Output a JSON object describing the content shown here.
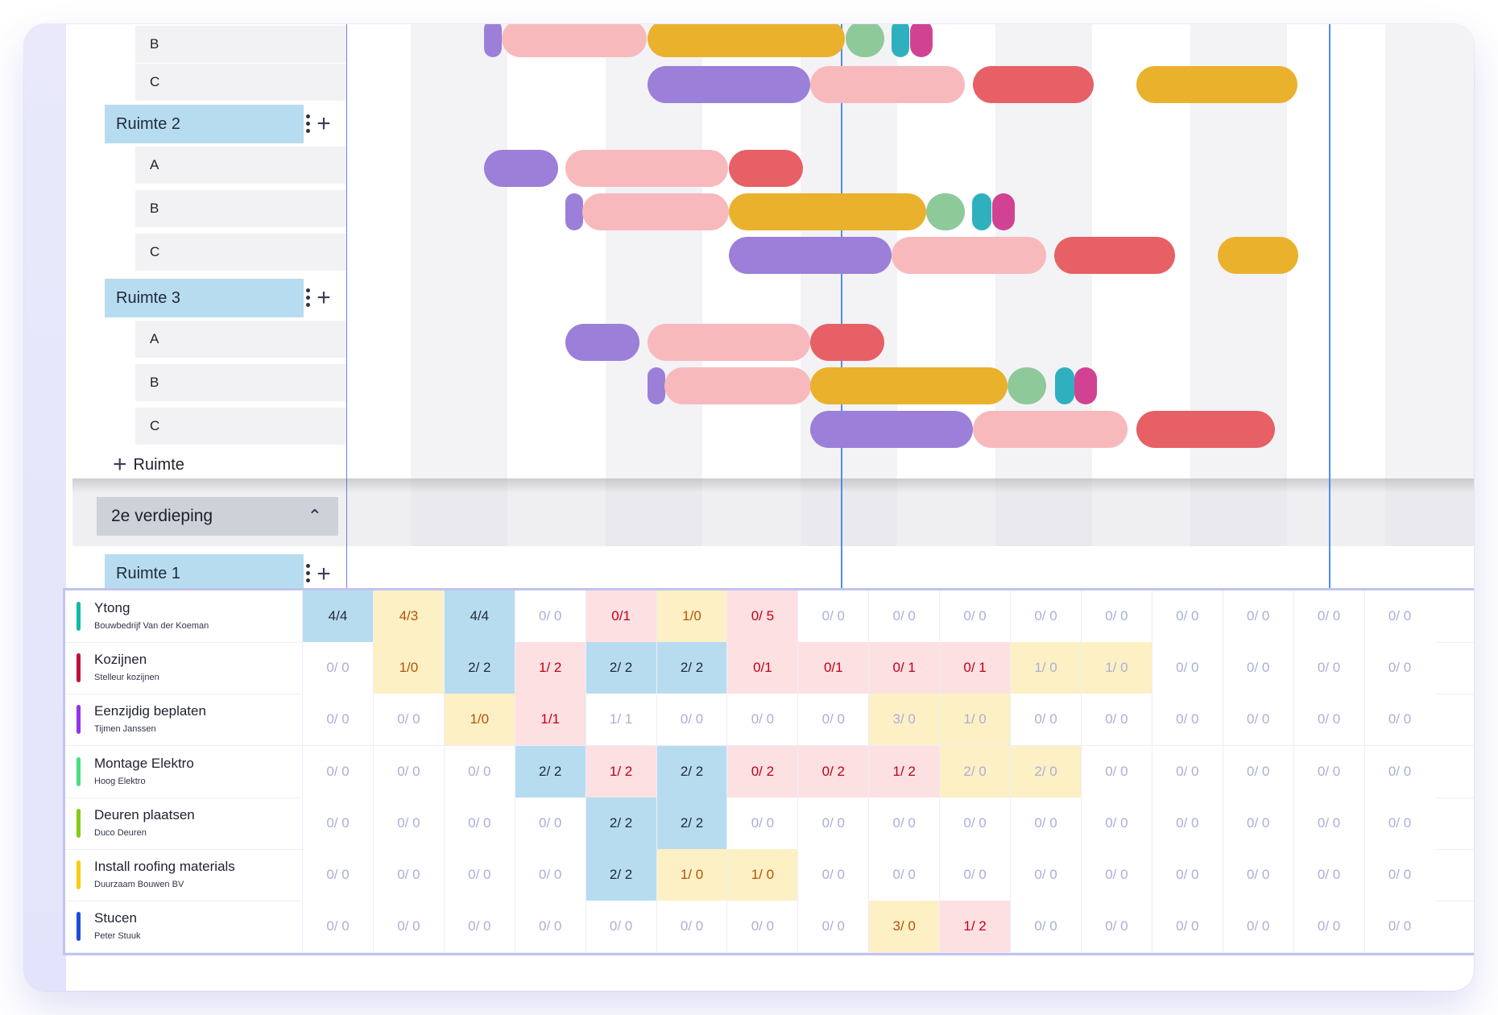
{
  "gantt": {
    "top_rows": [
      {
        "label": "B"
      },
      {
        "label": "C"
      }
    ],
    "rooms": [
      {
        "label": "Ruimte 2",
        "sub": [
          "A",
          "B",
          "C"
        ]
      },
      {
        "label": "Ruimte 3",
        "sub": [
          "A",
          "B",
          "C"
        ]
      }
    ],
    "add_room_label": "Ruimte",
    "floor_label": "2e verdieping",
    "floor_room_label": "Ruimte 1",
    "bar_colors": {
      "purple": "#9b7fd8",
      "pink": "#f8b9bd",
      "red": "#e66066",
      "yellow": "#eab12d",
      "green": "#8ec99a",
      "teal": "#2fb0bf",
      "magenta": "#d14392"
    }
  },
  "capacity": {
    "trades": [
      {
        "name": "Ytong",
        "company": "Bouwbedrijf Van der Koeman",
        "color": "#14b8a6",
        "cells": [
          [
            "4/4",
            "blue"
          ],
          [
            "4/3",
            "yellow"
          ],
          [
            "4/4",
            "blue"
          ],
          [
            "0/ 0",
            "empty"
          ],
          [
            "0/1",
            "red"
          ],
          [
            "1/0",
            "yellow"
          ],
          [
            "0/ 5",
            "red"
          ],
          [
            "0/ 0",
            "empty"
          ],
          [
            "0/ 0",
            "empty"
          ],
          [
            "0/ 0",
            "empty"
          ],
          [
            "0/ 0",
            "empty"
          ],
          [
            "0/ 0",
            "empty"
          ],
          [
            "0/ 0",
            "empty"
          ],
          [
            "0/ 0",
            "empty"
          ],
          [
            "0/ 0",
            "empty"
          ],
          [
            "0/ 0",
            "empty"
          ]
        ]
      },
      {
        "name": "Kozijnen",
        "company": "Stelleur kozijnen",
        "color": "#be123c",
        "cells": [
          [
            "0/ 0",
            "empty"
          ],
          [
            "1/0",
            "yellow"
          ],
          [
            "2/ 2",
            "blue"
          ],
          [
            "1/ 2",
            "red"
          ],
          [
            "2/ 2",
            "blue"
          ],
          [
            "2/ 2",
            "blue"
          ],
          [
            "0/1",
            "red"
          ],
          [
            "0/1",
            "red"
          ],
          [
            "0/ 1",
            "red"
          ],
          [
            "0/ 1",
            "red"
          ],
          [
            "1/ 0",
            "yellowpale"
          ],
          [
            "1/ 0",
            "yellowpale"
          ],
          [
            "0/ 0",
            "empty"
          ],
          [
            "0/ 0",
            "empty"
          ],
          [
            "0/ 0",
            "empty"
          ],
          [
            "0/ 0",
            "empty"
          ]
        ]
      },
      {
        "name": "Eenzijdig beplaten",
        "company": "Tijmen Janssen",
        "color": "#9333ea",
        "cells": [
          [
            "0/ 0",
            "empty"
          ],
          [
            "0/ 0",
            "empty"
          ],
          [
            "1/0",
            "yellow"
          ],
          [
            "1/1",
            "red"
          ],
          [
            "1/ 1",
            "empty"
          ],
          [
            "0/ 0",
            "empty"
          ],
          [
            "0/ 0",
            "empty"
          ],
          [
            "0/ 0",
            "empty"
          ],
          [
            "3/ 0",
            "yellowpale"
          ],
          [
            "1/ 0",
            "yellowpale"
          ],
          [
            "0/ 0",
            "empty"
          ],
          [
            "0/ 0",
            "empty"
          ],
          [
            "0/ 0",
            "empty"
          ],
          [
            "0/ 0",
            "empty"
          ],
          [
            "0/ 0",
            "empty"
          ],
          [
            "0/ 0",
            "empty"
          ]
        ]
      },
      {
        "name": "Montage Elektro",
        "company": "Hoog Elektro",
        "color": "#4ade80",
        "cells": [
          [
            "0/ 0",
            "empty"
          ],
          [
            "0/ 0",
            "empty"
          ],
          [
            "0/ 0",
            "empty"
          ],
          [
            "2/ 2",
            "blue"
          ],
          [
            "1/ 2",
            "red"
          ],
          [
            "2/ 2",
            "blue"
          ],
          [
            "0/ 2",
            "red"
          ],
          [
            "0/ 2",
            "red"
          ],
          [
            "1/ 2",
            "red"
          ],
          [
            "2/ 0",
            "yellowpale"
          ],
          [
            "2/ 0",
            "yellowpale"
          ],
          [
            "0/ 0",
            "empty"
          ],
          [
            "0/ 0",
            "empty"
          ],
          [
            "0/ 0",
            "empty"
          ],
          [
            "0/ 0",
            "empty"
          ],
          [
            "0/ 0",
            "empty"
          ]
        ]
      },
      {
        "name": "Deuren plaatsen",
        "company": "Duco Deuren",
        "color": "#84cc16",
        "cells": [
          [
            "0/ 0",
            "empty"
          ],
          [
            "0/ 0",
            "empty"
          ],
          [
            "0/ 0",
            "empty"
          ],
          [
            "0/ 0",
            "empty"
          ],
          [
            "2/ 2",
            "blue"
          ],
          [
            "2/ 2",
            "blue"
          ],
          [
            "0/ 0",
            "empty"
          ],
          [
            "0/ 0",
            "empty"
          ],
          [
            "0/ 0",
            "empty"
          ],
          [
            "0/ 0",
            "empty"
          ],
          [
            "0/ 0",
            "empty"
          ],
          [
            "0/ 0",
            "empty"
          ],
          [
            "0/ 0",
            "empty"
          ],
          [
            "0/ 0",
            "empty"
          ],
          [
            "0/ 0",
            "empty"
          ],
          [
            "0/ 0",
            "empty"
          ]
        ]
      },
      {
        "name": "Install roofing materials",
        "company": "Duurzaam Bouwen BV",
        "color": "#facc15",
        "cells": [
          [
            "0/ 0",
            "empty"
          ],
          [
            "0/ 0",
            "empty"
          ],
          [
            "0/ 0",
            "empty"
          ],
          [
            "0/ 0",
            "empty"
          ],
          [
            "2/ 2",
            "blue"
          ],
          [
            "1/ 0",
            "yellow"
          ],
          [
            "1/ 0",
            "yellow"
          ],
          [
            "0/ 0",
            "empty"
          ],
          [
            "0/ 0",
            "empty"
          ],
          [
            "0/ 0",
            "empty"
          ],
          [
            "0/ 0",
            "empty"
          ],
          [
            "0/ 0",
            "empty"
          ],
          [
            "0/ 0",
            "empty"
          ],
          [
            "0/ 0",
            "empty"
          ],
          [
            "0/ 0",
            "empty"
          ],
          [
            "0/ 0",
            "empty"
          ]
        ]
      },
      {
        "name": "Stucen",
        "company": "Peter Stuuk",
        "color": "#1d4ed8",
        "cells": [
          [
            "0/ 0",
            "empty"
          ],
          [
            "0/ 0",
            "empty"
          ],
          [
            "0/ 0",
            "empty"
          ],
          [
            "0/ 0",
            "empty"
          ],
          [
            "0/ 0",
            "empty"
          ],
          [
            "0/ 0",
            "empty"
          ],
          [
            "0/ 0",
            "empty"
          ],
          [
            "0/ 0",
            "empty"
          ],
          [
            "3/ 0",
            "yellow"
          ],
          [
            "1/ 2",
            "red"
          ],
          [
            "0/ 0",
            "empty"
          ],
          [
            "0/ 0",
            "empty"
          ],
          [
            "0/ 0",
            "empty"
          ],
          [
            "0/ 0",
            "empty"
          ],
          [
            "0/ 0",
            "empty"
          ],
          [
            "0/ 0",
            "empty"
          ]
        ]
      }
    ]
  }
}
